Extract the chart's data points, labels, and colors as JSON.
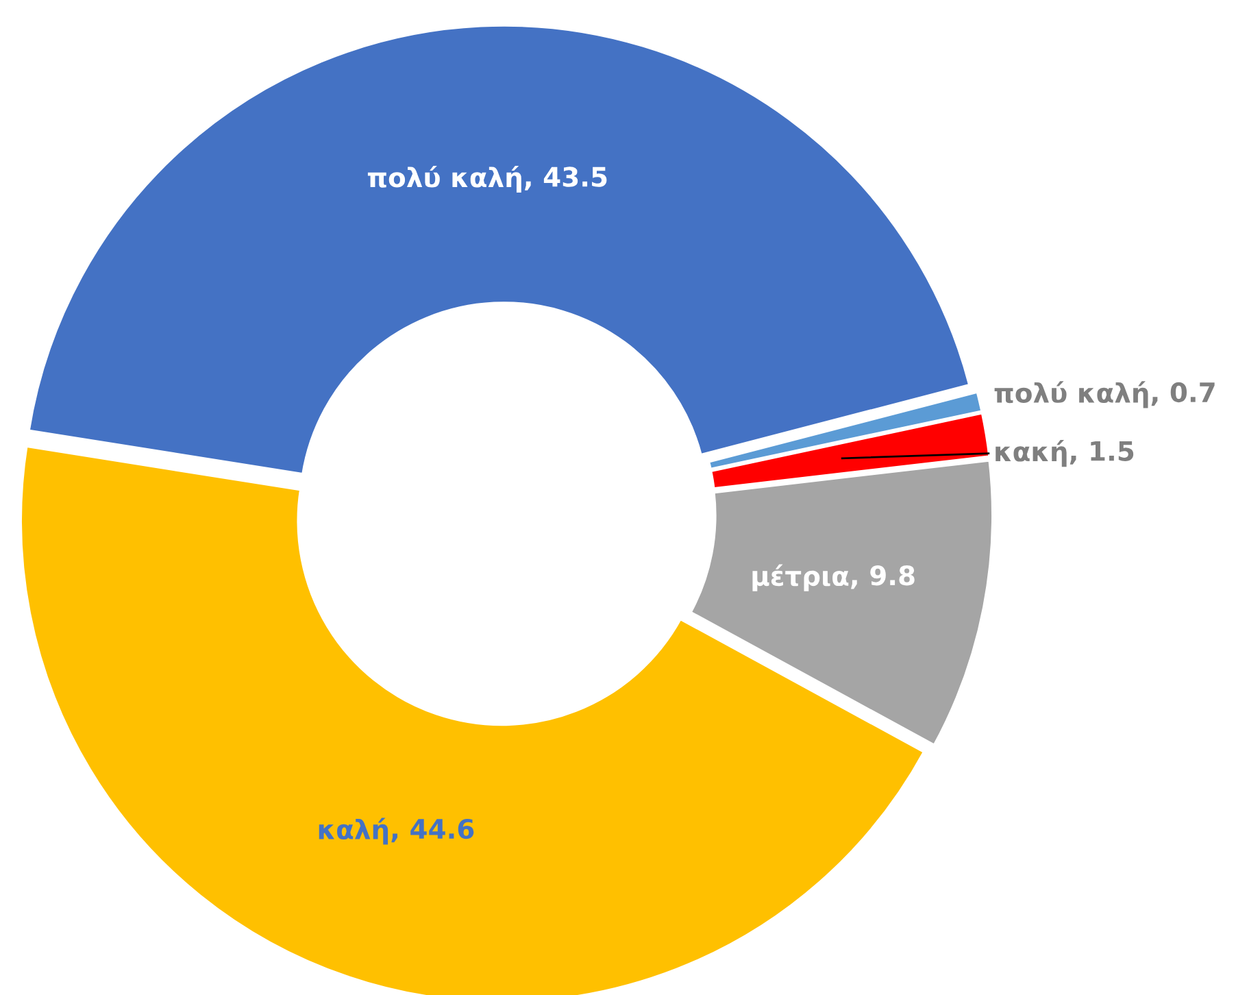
{
  "chart_data": {
    "type": "donut",
    "categories": [
      "πολύ καλή",
      "πολύ καλή",
      "κακή",
      "μέτρια",
      "καλή"
    ],
    "values": [
      43.5,
      0.7,
      1.5,
      9.8,
      44.6
    ],
    "colors": [
      "#4472c4",
      "#5b9bd5",
      "#ff0000",
      "#a5a5a5",
      "#ffc000"
    ],
    "value_labels": [
      ", 43.5",
      ", 0.7",
      ", 1.5",
      ", 9.8",
      ", 44.6"
    ],
    "legend": false
  }
}
